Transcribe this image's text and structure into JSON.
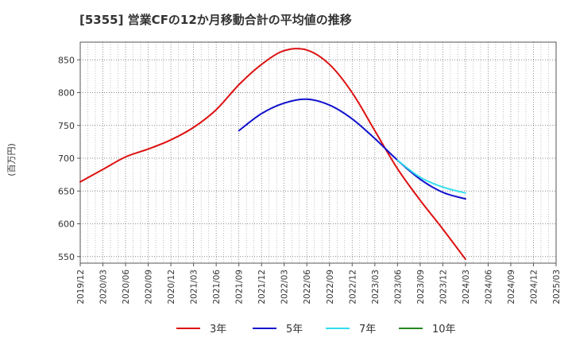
{
  "chart_data": {
    "type": "line",
    "title": "[5355]  営業CFの12か月移動合計の平均値の推移",
    "ylabel": "(百万円)",
    "xlabel": "",
    "ylim": [
      540,
      877
    ],
    "yticks": [
      550,
      600,
      650,
      700,
      750,
      800,
      850
    ],
    "x_ticks": [
      "2019/12",
      "2020/03",
      "2020/06",
      "2020/09",
      "2020/12",
      "2021/03",
      "2021/06",
      "2021/09",
      "2021/12",
      "2022/03",
      "2022/06",
      "2022/09",
      "2022/12",
      "2023/03",
      "2023/06",
      "2023/09",
      "2023/12",
      "2024/03",
      "2024/06",
      "2024/09",
      "2024/12",
      "2025/03"
    ],
    "grid": true,
    "legend_position": "bottom",
    "series": [
      {
        "name": "3年",
        "color": "#dd1111",
        "x": [
          "2019/12",
          "2020/03",
          "2020/06",
          "2020/09",
          "2020/12",
          "2021/03",
          "2021/06",
          "2021/09",
          "2021/12",
          "2022/03",
          "2022/06",
          "2022/09",
          "2022/12",
          "2023/03",
          "2023/06",
          "2023/09",
          "2023/12",
          "2024/03"
        ],
        "values": [
          664,
          683,
          702,
          714,
          728,
          747,
          774,
          812,
          843,
          864,
          865,
          843,
          800,
          742,
          684,
          636,
          592,
          546
        ]
      },
      {
        "name": "5年",
        "color": "#1111cc",
        "x": [
          "2021/09",
          "2021/12",
          "2022/03",
          "2022/06",
          "2022/09",
          "2022/12",
          "2023/03",
          "2023/06",
          "2023/09",
          "2023/12",
          "2024/03"
        ],
        "values": [
          742,
          768,
          784,
          790,
          781,
          760,
          730,
          697,
          668,
          648,
          638
        ]
      },
      {
        "name": "7年",
        "color": "#33ddee",
        "x": [
          "2023/06",
          "2023/09",
          "2023/12",
          "2024/03"
        ],
        "values": [
          697,
          671,
          656,
          647
        ]
      },
      {
        "name": "10年",
        "color": "#228822",
        "x": [],
        "values": []
      }
    ]
  }
}
